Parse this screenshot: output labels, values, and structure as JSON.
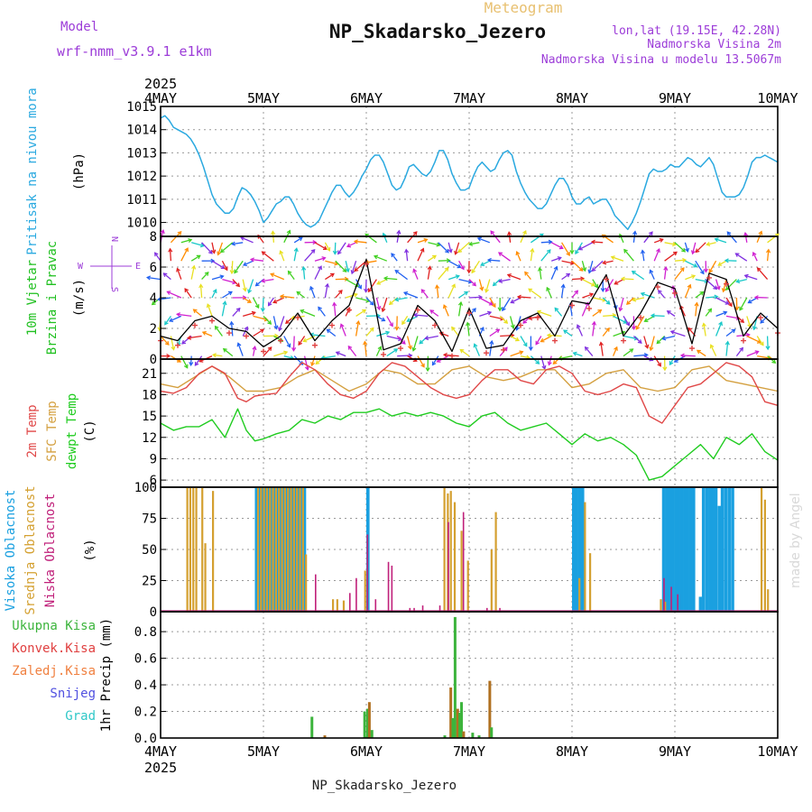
{
  "header": {
    "model_label": "Model",
    "model_name": "wrf-nmm_v3.9.1 e1km",
    "product": "Meteogram",
    "station": "NP_Skadarsko_Jezero",
    "coords": "lon,lat (19.15E, 42.28N)",
    "elevation": "Nadmorska Visina 2m",
    "model_elevation": "Nadmorska Visina u modelu 13.5067m"
  },
  "footer": {
    "station": "NP_Skadarsko_Jezero",
    "credit": "made by Angel"
  },
  "colors": {
    "pressure": "#2aa9e0",
    "wind": "#20c020",
    "gust": "#e04040",
    "temp2m": "#e04848",
    "sfc": "#d4a040",
    "dewpt": "#20cc20",
    "high_cloud": "#1aa0e0",
    "mid_cloud": "#d4a030",
    "low_cloud": "#c0207a",
    "precip_total": "#3cb43c",
    "precip_conv": "#e04040",
    "precip_frz": "#f08040",
    "precip_snow": "#5050e0",
    "precip_grad": "#30c8c8",
    "axis_label": "#9c3cd8"
  },
  "chart_data": [
    {
      "type": "line",
      "name": "pressure",
      "ylabel": [
        "Pritisak na nivou mora",
        "(hPa)"
      ],
      "xlabel": "",
      "xrange_hours": [
        0,
        144
      ],
      "x_top_year": "2025",
      "x_ticks": [
        "4MAY",
        "5MAY",
        "6MAY",
        "7MAY",
        "8MAY",
        "9MAY",
        "10MAY"
      ],
      "ylim": [
        1009.4,
        1015
      ],
      "yticks": [
        1010,
        1011,
        1012,
        1013,
        1014,
        1015
      ],
      "grid": true,
      "series": [
        {
          "values_x_hours": [
            0,
            1,
            2,
            3,
            4,
            5,
            6,
            7,
            8,
            9,
            10,
            11,
            12,
            13,
            14,
            15,
            16,
            17,
            18,
            19,
            20,
            21,
            22,
            23,
            24,
            25,
            26,
            27,
            28,
            29,
            30,
            31,
            32,
            33,
            34,
            35,
            36,
            37,
            38,
            39,
            40,
            41,
            42,
            43,
            44,
            45,
            46,
            47,
            48,
            49,
            50,
            51,
            52,
            53,
            54,
            55,
            56,
            57,
            58,
            59,
            60,
            61,
            62,
            63,
            64,
            65,
            66,
            67,
            68,
            69,
            70,
            71,
            72,
            73,
            74,
            75,
            76,
            77,
            78,
            79,
            80,
            81,
            82,
            83,
            84,
            85,
            86,
            87,
            88,
            89,
            90,
            91,
            92,
            93,
            94,
            95,
            96,
            97,
            98,
            99,
            100,
            101,
            102,
            103,
            104,
            105,
            106,
            107,
            108,
            109,
            110,
            111,
            112,
            113,
            114,
            115,
            116,
            117,
            118,
            119,
            120,
            121,
            122,
            123,
            124,
            125,
            126,
            127,
            128,
            129,
            130,
            131,
            132,
            133,
            134,
            135,
            136,
            137,
            138,
            139,
            140,
            141,
            142,
            143,
            144
          ],
          "values": [
            1014.5,
            1014.6,
            1014.4,
            1014.1,
            1014.0,
            1013.9,
            1013.8,
            1013.6,
            1013.3,
            1012.9,
            1012.4,
            1011.8,
            1011.2,
            1010.8,
            1010.6,
            1010.4,
            1010.4,
            1010.6,
            1011.1,
            1011.5,
            1011.4,
            1011.2,
            1010.9,
            1010.5,
            1010.0,
            1010.2,
            1010.5,
            1010.8,
            1010.9,
            1011.1,
            1011.1,
            1010.8,
            1010.4,
            1010.1,
            1009.9,
            1009.8,
            1009.9,
            1010.1,
            1010.5,
            1010.9,
            1011.3,
            1011.6,
            1011.6,
            1011.3,
            1011.1,
            1011.3,
            1011.6,
            1012.0,
            1012.3,
            1012.7,
            1012.9,
            1012.9,
            1012.6,
            1012.1,
            1011.6,
            1011.4,
            1011.5,
            1011.9,
            1012.4,
            1012.5,
            1012.3,
            1012.1,
            1012.0,
            1012.2,
            1012.6,
            1013.1,
            1013.1,
            1012.7,
            1012.1,
            1011.7,
            1011.4,
            1011.4,
            1011.5,
            1012.0,
            1012.4,
            1012.6,
            1012.4,
            1012.2,
            1012.3,
            1012.7,
            1013.0,
            1013.1,
            1012.9,
            1012.2,
            1011.7,
            1011.3,
            1011.0,
            1010.8,
            1010.6,
            1010.6,
            1010.8,
            1011.2,
            1011.6,
            1011.9,
            1011.9,
            1011.6,
            1011.1,
            1010.8,
            1010.8,
            1011.0,
            1011.1,
            1010.8,
            1010.9,
            1011.0,
            1011.0,
            1010.7,
            1010.3,
            1010.1,
            1009.9,
            1009.7,
            1010.0,
            1010.4,
            1010.9,
            1011.5,
            1012.1,
            1012.3,
            1012.2,
            1012.2,
            1012.3,
            1012.5,
            1012.4,
            1012.4,
            1012.6,
            1012.8,
            1012.7,
            1012.5,
            1012.4,
            1012.6,
            1012.8,
            1012.5,
            1011.9,
            1011.3,
            1011.1,
            1011.1,
            1011.1,
            1011.2,
            1011.5,
            1012.0,
            1012.6,
            1012.8,
            1012.8,
            1012.9,
            1012.8,
            1012.7,
            1012.6
          ]
        }
      ]
    },
    {
      "type": "line",
      "name": "wind",
      "ylabel": [
        "10m Vjetar",
        "Brzina i Pravac",
        "(m/s)"
      ],
      "compass": {
        "north": "N",
        "west": "W",
        "east": "E",
        "south": "S"
      },
      "ylim": [
        0,
        8
      ],
      "yticks": [
        0,
        2,
        4,
        6,
        8
      ],
      "grid": true,
      "series": [
        {
          "name": "speed",
          "values_x_hours": [
            0,
            4,
            8,
            12,
            16,
            20,
            24,
            28,
            32,
            36,
            40,
            44,
            48,
            52,
            56,
            60,
            64,
            68,
            72,
            76,
            80,
            84,
            88,
            92,
            96,
            100,
            104,
            108,
            112,
            116,
            120,
            124,
            128,
            132,
            136,
            140,
            144
          ],
          "values": [
            1.5,
            1.2,
            2.5,
            2.8,
            2.0,
            1.8,
            0.8,
            1.5,
            3.0,
            1.2,
            2.5,
            3.5,
            6.5,
            0.6,
            1.0,
            3.5,
            2.5,
            0.5,
            3.3,
            0.7,
            0.9,
            2.5,
            3.0,
            1.5,
            3.8,
            3.6,
            5.5,
            1.5,
            3.0,
            5.0,
            4.6,
            1.0,
            5.6,
            5.2,
            1.5,
            3.0,
            2.0
          ]
        }
      ]
    },
    {
      "type": "line",
      "name": "temperature",
      "ylabel": [
        "2m Temp",
        "SFC Temp",
        "dewpt Temp",
        "(C)"
      ],
      "ylim": [
        5,
        23
      ],
      "yticks": [
        6,
        9,
        12,
        15,
        18,
        21
      ],
      "grid": true,
      "series": [
        {
          "name": "2m Temp",
          "values_x_hours": [
            0,
            3,
            6,
            9,
            12,
            15,
            18,
            20,
            22,
            24,
            27,
            30,
            33,
            36,
            39,
            42,
            45,
            48,
            51,
            54,
            57,
            60,
            63,
            66,
            69,
            72,
            75,
            78,
            81,
            84,
            87,
            90,
            93,
            96,
            99,
            102,
            105,
            108,
            111,
            114,
            117,
            120,
            123,
            126,
            129,
            132,
            135,
            138,
            141,
            144
          ],
          "values": [
            18.5,
            18.2,
            19.0,
            21.0,
            22.0,
            21.0,
            17.5,
            17.0,
            17.8,
            18.0,
            18.2,
            20.5,
            22.5,
            21.5,
            19.5,
            18.0,
            17.5,
            18.5,
            21.0,
            22.5,
            22.0,
            20.5,
            19.0,
            18.0,
            17.5,
            18.0,
            20.0,
            21.5,
            21.5,
            20.0,
            19.5,
            21.5,
            22.0,
            21.0,
            18.5,
            18.0,
            18.5,
            19.5,
            19.0,
            15.0,
            14.0,
            16.5,
            19.0,
            19.5,
            21.0,
            22.5,
            22.0,
            20.5,
            17.0,
            16.5
          ]
        },
        {
          "name": "SFC Temp",
          "values_x_hours": [
            0,
            4,
            8,
            12,
            16,
            20,
            24,
            28,
            32,
            36,
            40,
            44,
            48,
            52,
            56,
            60,
            64,
            68,
            72,
            76,
            80,
            84,
            88,
            92,
            96,
            100,
            104,
            108,
            112,
            116,
            120,
            124,
            128,
            132,
            136,
            140,
            144
          ],
          "values": [
            19.5,
            19.0,
            20.5,
            22.0,
            20.5,
            18.5,
            18.5,
            19.0,
            20.5,
            21.5,
            20.0,
            18.5,
            19.5,
            21.5,
            21.0,
            19.5,
            19.5,
            21.5,
            22.0,
            20.5,
            20.0,
            20.5,
            21.5,
            21.5,
            19.0,
            19.5,
            21.0,
            21.5,
            19.0,
            18.5,
            19.0,
            21.5,
            22.0,
            20.0,
            19.5,
            19.0,
            18.5
          ]
        },
        {
          "name": "dewpt Temp",
          "values_x_hours": [
            0,
            3,
            6,
            9,
            12,
            15,
            18,
            20,
            22,
            24,
            27,
            30,
            33,
            36,
            39,
            42,
            45,
            48,
            51,
            54,
            57,
            60,
            63,
            66,
            69,
            72,
            75,
            78,
            81,
            84,
            87,
            90,
            93,
            96,
            99,
            102,
            105,
            108,
            111,
            114,
            117,
            120,
            123,
            126,
            129,
            132,
            135,
            138,
            141,
            144
          ],
          "values": [
            14.0,
            13.0,
            13.5,
            13.5,
            14.5,
            12.0,
            16.0,
            13.0,
            11.5,
            11.8,
            12.5,
            13.0,
            14.5,
            14.0,
            15.0,
            14.5,
            15.5,
            15.5,
            16.0,
            15.0,
            15.5,
            15.0,
            15.5,
            15.0,
            14.0,
            13.5,
            15.0,
            15.5,
            14.0,
            13.0,
            13.5,
            14.0,
            12.5,
            11.0,
            12.5,
            11.5,
            12.0,
            11.0,
            9.5,
            6.0,
            6.5,
            8.0,
            9.5,
            11.0,
            9.0,
            12.0,
            11.0,
            12.5,
            10.0,
            8.8
          ]
        }
      ]
    },
    {
      "type": "bar",
      "name": "cloud",
      "ylabel": [
        "Visoka Oblacnost",
        "Srednja Oblacnost",
        "Niska Oblacnost",
        "(%)"
      ],
      "ylim": [
        0,
        100
      ],
      "yticks": [
        0,
        25,
        50,
        75,
        100
      ],
      "grid": true,
      "series": [
        {
          "name": "Visoka Oblacnost",
          "x_hours": [
            22,
            22.7,
            23.4,
            24.1,
            24.8,
            25.5,
            26.2,
            26.9,
            27.6,
            28.3,
            29,
            29.7,
            30.4,
            31.1,
            31.8,
            32.5,
            33.2,
            48,
            96,
            96.7,
            97.4,
            98.1,
            117,
            117.7,
            118.4,
            119.1,
            119.8,
            120.5,
            121.2,
            121.9,
            122.6,
            123.3,
            124,
            125.6,
            126.3,
            127.1,
            127.8,
            128.5,
            129.2,
            130,
            130.7,
            131.5,
            132.3,
            133.1
          ],
          "values": [
            100,
            100,
            100,
            100,
            100,
            100,
            100,
            100,
            100,
            100,
            100,
            100,
            100,
            100,
            100,
            100,
            100,
            100,
            100,
            100,
            100,
            100,
            100,
            100,
            100,
            100,
            100,
            100,
            100,
            100,
            100,
            100,
            100,
            12,
            100,
            100,
            100,
            100,
            100,
            85,
            100,
            100,
            100,
            100
          ]
        },
        {
          "name": "Srednja Oblacnost",
          "x_hours": [
            6,
            6.7,
            7.4,
            8.1,
            9.5,
            10.2,
            12,
            22.5,
            23.2,
            23.9,
            24.6,
            25.3,
            26,
            26.7,
            27.4,
            28.1,
            28.8,
            29.5,
            30.2,
            30.9,
            31.6,
            32.3,
            33,
            33.7,
            40,
            41,
            42.5,
            47.5,
            66,
            66.8,
            67.5,
            68.4,
            70,
            71.5,
            77,
            78,
            97.5,
            98.8,
            100,
            116.5,
            117.5,
            140,
            140.8,
            141.5
          ],
          "values": [
            100,
            100,
            100,
            100,
            100,
            55,
            97,
            100,
            100,
            100,
            100,
            100,
            100,
            100,
            100,
            100,
            100,
            100,
            100,
            100,
            100,
            100,
            100,
            46,
            10,
            10,
            9,
            33,
            100,
            95,
            97,
            88,
            65,
            41,
            50,
            80,
            27,
            88,
            47,
            10,
            8,
            100,
            90,
            18
          ]
        },
        {
          "name": "Niska Oblacnost",
          "x_hours": [
            36,
            44,
            45.5,
            48.1,
            50,
            53,
            53.8,
            58,
            59,
            61,
            65,
            67,
            70.5,
            76,
            79,
            117.3,
            119,
            120.5
          ],
          "values": [
            30,
            15,
            27,
            62,
            10,
            40,
            37,
            3,
            3,
            5,
            5,
            72,
            80,
            3,
            3,
            27,
            20,
            14
          ]
        }
      ]
    },
    {
      "type": "bar",
      "name": "precipitation",
      "ylabel": [
        "1hr Precip (mm)"
      ],
      "legend": [
        "Ukupna Kisa",
        "Konvek.Kisa",
        "Zaledj.Kisa",
        "Snijeg",
        "Grad"
      ],
      "legend_position": "left",
      "x_bottom_year": "2025",
      "ylim": [
        0,
        0.95
      ],
      "yticks": [
        0,
        0.2,
        0.4,
        0.6,
        0.8
      ],
      "grid": true,
      "series": [
        {
          "name": "Ukupna Kisa",
          "x_hours": [
            35,
            38,
            47.3,
            48,
            48.4,
            49,
            66,
            67.4,
            67.9,
            68.4,
            69,
            69.5,
            69.9,
            70.4,
            72.5,
            74,
            76.5,
            76.9
          ],
          "values": [
            0.16,
            0.02,
            0.2,
            0.22,
            0.27,
            0.06,
            0.02,
            0.38,
            0.15,
            0.91,
            0.22,
            0.19,
            0.27,
            0.05,
            0.04,
            0.02,
            0.43,
            0.08
          ]
        }
      ]
    }
  ]
}
